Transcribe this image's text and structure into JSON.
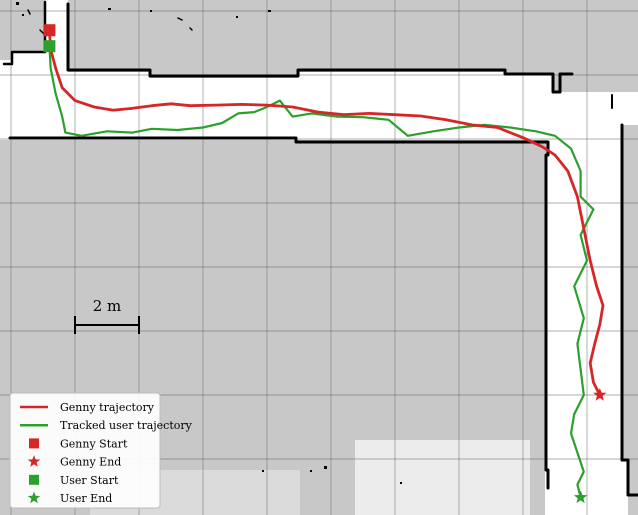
{
  "colors": {
    "occupied": "#000000",
    "unknown": "#c8c8c8",
    "free": "#ffffff",
    "grid": "#6b6b6b",
    "genny": "#d62728",
    "user": "#2ca02c"
  },
  "map": {
    "grid_spacing_m": 1,
    "scale_bar": {
      "length_m": 2,
      "label": "2 m"
    }
  },
  "legend": {
    "placement": "bottom-left",
    "items": [
      {
        "label": "Genny trajectory",
        "marker": "line",
        "color_key": "genny"
      },
      {
        "label": "Tracked user trajectory",
        "marker": "line",
        "color_key": "user"
      },
      {
        "label": "Genny Start",
        "marker": "square",
        "color_key": "genny"
      },
      {
        "label": "Genny End",
        "marker": "star",
        "color_key": "genny"
      },
      {
        "label": "User Start",
        "marker": "square",
        "color_key": "user"
      },
      {
        "label": "User End",
        "marker": "star",
        "color_key": "user"
      }
    ]
  },
  "trajectories": {
    "genny": {
      "start_marker": "square",
      "end_marker": "star",
      "points_m": [
        [
          0.6,
          0.3
        ],
        [
          0.62,
          0.6
        ],
        [
          0.7,
          0.9
        ],
        [
          0.8,
          1.2
        ],
        [
          1.0,
          1.4
        ],
        [
          1.3,
          1.5
        ],
        [
          1.6,
          1.55
        ],
        [
          1.9,
          1.52
        ],
        [
          2.2,
          1.48
        ],
        [
          2.5,
          1.45
        ],
        [
          2.8,
          1.48
        ],
        [
          3.2,
          1.47
        ],
        [
          3.6,
          1.46
        ],
        [
          4.0,
          1.47
        ],
        [
          4.4,
          1.5
        ],
        [
          4.8,
          1.58
        ],
        [
          5.2,
          1.62
        ],
        [
          5.6,
          1.6
        ],
        [
          6.0,
          1.62
        ],
        [
          6.4,
          1.64
        ],
        [
          6.8,
          1.7
        ],
        [
          7.2,
          1.78
        ],
        [
          7.6,
          1.82
        ],
        [
          8.0,
          1.98
        ],
        [
          8.3,
          2.12
        ],
        [
          8.5,
          2.25
        ],
        [
          8.7,
          2.5
        ],
        [
          8.85,
          2.9
        ],
        [
          8.95,
          3.4
        ],
        [
          9.05,
          3.9
        ],
        [
          9.15,
          4.3
        ],
        [
          9.25,
          4.6
        ],
        [
          9.2,
          4.9
        ],
        [
          9.12,
          5.2
        ],
        [
          9.05,
          5.5
        ],
        [
          9.1,
          5.8
        ],
        [
          9.2,
          6.0
        ]
      ]
    },
    "user": {
      "start_marker": "square",
      "end_marker": "star",
      "points_m": [
        [
          0.6,
          0.55
        ],
        [
          0.62,
          0.9
        ],
        [
          0.7,
          1.3
        ],
        [
          0.8,
          1.65
        ],
        [
          0.85,
          1.9
        ],
        [
          1.1,
          1.95
        ],
        [
          1.5,
          1.88
        ],
        [
          1.9,
          1.9
        ],
        [
          2.2,
          1.84
        ],
        [
          2.6,
          1.86
        ],
        [
          3.0,
          1.82
        ],
        [
          3.3,
          1.75
        ],
        [
          3.55,
          1.6
        ],
        [
          3.8,
          1.58
        ],
        [
          4.0,
          1.5
        ],
        [
          4.2,
          1.4
        ],
        [
          4.4,
          1.65
        ],
        [
          4.7,
          1.6
        ],
        [
          5.1,
          1.65
        ],
        [
          5.5,
          1.66
        ],
        [
          5.9,
          1.7
        ],
        [
          6.2,
          1.95
        ],
        [
          6.6,
          1.88
        ],
        [
          7.0,
          1.82
        ],
        [
          7.4,
          1.78
        ],
        [
          7.8,
          1.82
        ],
        [
          8.2,
          1.88
        ],
        [
          8.5,
          1.95
        ],
        [
          8.75,
          2.15
        ],
        [
          8.9,
          2.5
        ],
        [
          8.9,
          2.9
        ],
        [
          9.1,
          3.1
        ],
        [
          8.9,
          3.5
        ],
        [
          9.0,
          3.9
        ],
        [
          8.8,
          4.3
        ],
        [
          8.95,
          4.8
        ],
        [
          8.85,
          5.2
        ],
        [
          8.9,
          5.6
        ],
        [
          8.95,
          6.0
        ],
        [
          8.8,
          6.3
        ],
        [
          8.75,
          6.6
        ],
        [
          8.85,
          6.9
        ],
        [
          8.95,
          7.2
        ],
        [
          8.85,
          7.4
        ],
        [
          8.9,
          7.6
        ]
      ]
    }
  }
}
